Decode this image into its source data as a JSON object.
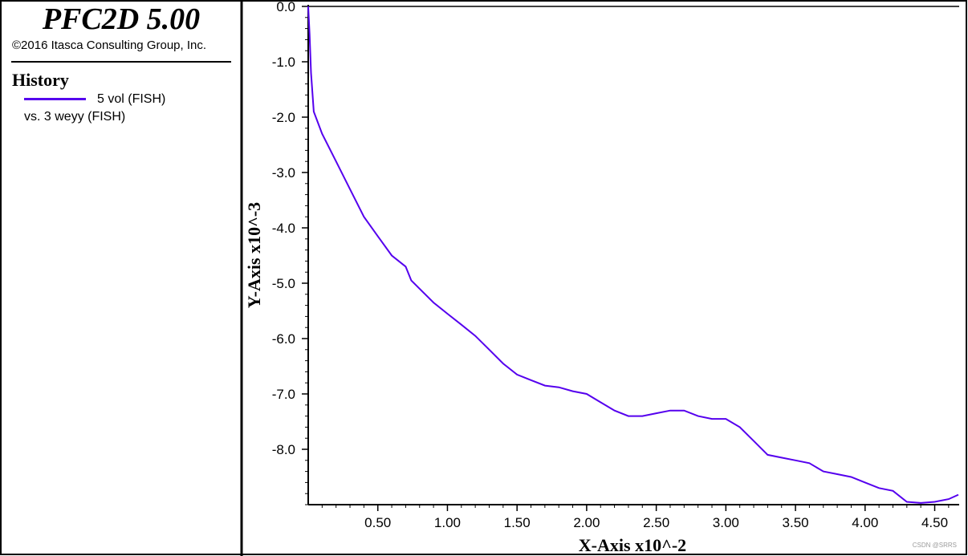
{
  "header": {
    "app_title": "PFC2D 5.00",
    "copyright": "©2016 Itasca Consulting Group, Inc."
  },
  "legend": {
    "heading": "History",
    "series_label": "5 vol (FISH)",
    "vs_label": "vs. 3 weyy (FISH)"
  },
  "watermark": "CSDN @SRRS",
  "colors": {
    "series": "#5500ee",
    "axis": "#000000",
    "background": "#ffffff"
  },
  "chart_data": {
    "type": "line",
    "title": "",
    "xlabel": "X-Axis x10^-2",
    "ylabel": "Y-Axis x10^-3",
    "xlim": [
      0.0,
      4.67
    ],
    "ylim": [
      -9.0,
      0.0
    ],
    "x_ticks": [
      0.5,
      1.0,
      1.5,
      2.0,
      2.5,
      3.0,
      3.5,
      4.0,
      4.5
    ],
    "x_tick_labels": [
      "0.50",
      "1.00",
      "1.50",
      "2.00",
      "2.50",
      "3.00",
      "3.50",
      "4.00",
      "4.50"
    ],
    "y_ticks": [
      0.0,
      -1.0,
      -2.0,
      -3.0,
      -4.0,
      -5.0,
      -6.0,
      -7.0,
      -8.0
    ],
    "y_tick_labels": [
      "0.0",
      "-1.0",
      "-2.0",
      "-3.0",
      "-4.0",
      "-5.0",
      "-6.0",
      "-7.0",
      "-8.0"
    ],
    "grid": false,
    "series": [
      {
        "name": "5 vol (FISH)",
        "x": [
          0.0,
          0.01,
          0.02,
          0.04,
          0.1,
          0.2,
          0.3,
          0.4,
          0.5,
          0.6,
          0.7,
          0.74,
          0.8,
          0.9,
          1.0,
          1.1,
          1.2,
          1.3,
          1.4,
          1.5,
          1.6,
          1.7,
          1.8,
          1.9,
          2.0,
          2.1,
          2.2,
          2.3,
          2.4,
          2.5,
          2.6,
          2.7,
          2.8,
          2.9,
          3.0,
          3.1,
          3.2,
          3.3,
          3.4,
          3.5,
          3.6,
          3.7,
          3.8,
          3.9,
          4.0,
          4.1,
          4.2,
          4.3,
          4.4,
          4.5,
          4.6,
          4.67
        ],
        "y": [
          0.0,
          -0.5,
          -1.2,
          -1.9,
          -2.3,
          -2.8,
          -3.3,
          -3.8,
          -4.15,
          -4.5,
          -4.7,
          -4.95,
          -5.1,
          -5.35,
          -5.55,
          -5.75,
          -5.95,
          -6.2,
          -6.45,
          -6.65,
          -6.75,
          -6.85,
          -6.88,
          -6.95,
          -7.0,
          -7.15,
          -7.3,
          -7.4,
          -7.4,
          -7.35,
          -7.3,
          -7.3,
          -7.4,
          -7.45,
          -7.45,
          -7.6,
          -7.85,
          -8.1,
          -8.15,
          -8.2,
          -8.25,
          -8.4,
          -8.45,
          -8.5,
          -8.6,
          -8.7,
          -8.75,
          -8.95,
          -8.97,
          -8.95,
          -8.9,
          -8.82
        ]
      }
    ]
  }
}
